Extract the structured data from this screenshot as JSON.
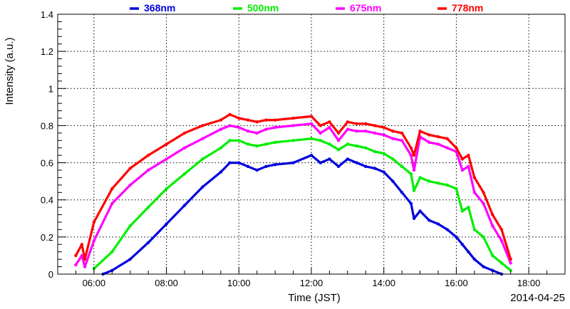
{
  "chart_data": {
    "type": "scatter",
    "xlabel": "Time (JST)",
    "ylabel": "Intensity (a.u.)",
    "date_label": "2014-04-25",
    "xlim": [
      "05:00",
      "19:00"
    ],
    "ylim": [
      0,
      1.4
    ],
    "grid": true,
    "legend_position": "top",
    "x_ticks": [
      "06:00",
      "08:00",
      "10:00",
      "12:00",
      "14:00",
      "16:00",
      "18:00"
    ],
    "y_ticks": [
      "0",
      "0.2",
      "0.4",
      "0.6",
      "0.8",
      "1",
      "1.2",
      "1.4"
    ],
    "series": [
      {
        "name": "368nm",
        "color": "#0000dd",
        "x": [
          "06:15",
          "06:30",
          "07:00",
          "07:30",
          "08:00",
          "08:30",
          "09:00",
          "09:30",
          "09:45",
          "10:00",
          "10:15",
          "10:30",
          "10:45",
          "11:00",
          "11:30",
          "12:00",
          "12:15",
          "12:30",
          "12:45",
          "13:00",
          "13:15",
          "13:30",
          "13:45",
          "14:00",
          "14:15",
          "14:30",
          "14:45",
          "14:50",
          "15:00",
          "15:15",
          "15:30",
          "15:45",
          "16:00",
          "16:10",
          "16:20",
          "16:30",
          "16:45",
          "17:00",
          "17:15"
        ],
        "y": [
          0.0,
          0.02,
          0.08,
          0.17,
          0.27,
          0.37,
          0.47,
          0.55,
          0.6,
          0.6,
          0.58,
          0.56,
          0.58,
          0.59,
          0.6,
          0.64,
          0.6,
          0.62,
          0.58,
          0.62,
          0.6,
          0.58,
          0.57,
          0.55,
          0.5,
          0.44,
          0.38,
          0.3,
          0.34,
          0.29,
          0.27,
          0.24,
          0.2,
          0.16,
          0.12,
          0.08,
          0.04,
          0.02,
          0.0
        ]
      },
      {
        "name": "500nm",
        "color": "#00ee00",
        "x": [
          "06:00",
          "06:30",
          "07:00",
          "07:30",
          "08:00",
          "08:30",
          "09:00",
          "09:30",
          "09:45",
          "10:00",
          "10:15",
          "10:30",
          "10:45",
          "11:00",
          "11:30",
          "12:00",
          "12:15",
          "12:30",
          "12:45",
          "13:00",
          "13:15",
          "13:30",
          "13:45",
          "14:00",
          "14:15",
          "14:30",
          "14:45",
          "14:50",
          "15:00",
          "15:15",
          "15:30",
          "15:45",
          "16:00",
          "16:10",
          "16:20",
          "16:30",
          "16:45",
          "17:00",
          "17:15",
          "17:30"
        ],
        "y": [
          0.03,
          0.12,
          0.26,
          0.36,
          0.46,
          0.54,
          0.62,
          0.68,
          0.72,
          0.72,
          0.7,
          0.69,
          0.7,
          0.71,
          0.72,
          0.73,
          0.72,
          0.7,
          0.67,
          0.7,
          0.69,
          0.68,
          0.66,
          0.65,
          0.62,
          0.58,
          0.54,
          0.45,
          0.52,
          0.5,
          0.49,
          0.48,
          0.46,
          0.34,
          0.36,
          0.24,
          0.2,
          0.1,
          0.06,
          0.02
        ]
      },
      {
        "name": "675nm",
        "color": "#ff00ff",
        "x": [
          "05:30",
          "05:40",
          "05:45",
          "06:00",
          "06:30",
          "07:00",
          "07:30",
          "08:00",
          "08:30",
          "09:00",
          "09:30",
          "09:45",
          "10:00",
          "10:15",
          "10:30",
          "10:45",
          "11:00",
          "11:30",
          "12:00",
          "12:15",
          "12:30",
          "12:45",
          "13:00",
          "13:15",
          "13:30",
          "13:45",
          "14:00",
          "14:15",
          "14:30",
          "14:45",
          "14:50",
          "15:00",
          "15:15",
          "15:30",
          "15:45",
          "16:00",
          "16:10",
          "16:20",
          "16:30",
          "16:45",
          "17:00",
          "17:15",
          "17:30"
        ],
        "y": [
          0.05,
          0.1,
          0.04,
          0.18,
          0.38,
          0.48,
          0.56,
          0.62,
          0.68,
          0.73,
          0.78,
          0.8,
          0.79,
          0.77,
          0.76,
          0.78,
          0.79,
          0.8,
          0.81,
          0.76,
          0.79,
          0.72,
          0.78,
          0.77,
          0.77,
          0.76,
          0.75,
          0.73,
          0.72,
          0.64,
          0.56,
          0.74,
          0.71,
          0.7,
          0.68,
          0.66,
          0.56,
          0.58,
          0.44,
          0.38,
          0.26,
          0.18,
          0.06
        ]
      },
      {
        "name": "778nm",
        "color": "#ff0000",
        "x": [
          "05:30",
          "05:40",
          "05:45",
          "06:00",
          "06:30",
          "07:00",
          "07:30",
          "08:00",
          "08:30",
          "09:00",
          "09:30",
          "09:45",
          "10:00",
          "10:15",
          "10:30",
          "10:45",
          "11:00",
          "11:30",
          "12:00",
          "12:15",
          "12:30",
          "12:45",
          "13:00",
          "13:15",
          "13:30",
          "13:45",
          "14:00",
          "14:15",
          "14:30",
          "14:45",
          "14:50",
          "15:00",
          "15:15",
          "15:30",
          "15:45",
          "16:00",
          "16:10",
          "16:20",
          "16:30",
          "16:45",
          "17:00",
          "17:15",
          "17:30"
        ],
        "y": [
          0.1,
          0.16,
          0.08,
          0.28,
          0.46,
          0.57,
          0.64,
          0.7,
          0.76,
          0.8,
          0.83,
          0.86,
          0.84,
          0.83,
          0.82,
          0.83,
          0.83,
          0.84,
          0.85,
          0.8,
          0.82,
          0.76,
          0.82,
          0.81,
          0.81,
          0.8,
          0.79,
          0.77,
          0.76,
          0.68,
          0.64,
          0.77,
          0.75,
          0.74,
          0.73,
          0.68,
          0.62,
          0.64,
          0.52,
          0.44,
          0.32,
          0.24,
          0.08
        ]
      }
    ]
  }
}
